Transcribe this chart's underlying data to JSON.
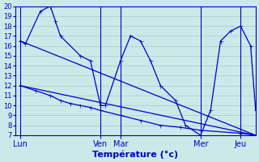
{
  "title": "Température (°c)",
  "background_color": "#cde8e8",
  "grid_color": "#a8c8c8",
  "line_color": "#0000cc",
  "xlim": [
    0,
    96
  ],
  "ylim": [
    7,
    20
  ],
  "yticks": [
    7,
    8,
    9,
    10,
    11,
    12,
    13,
    14,
    15,
    16,
    17,
    18,
    19,
    20
  ],
  "xtick_positions": [
    2,
    34,
    42,
    74,
    90
  ],
  "xtick_labels": [
    "Lun",
    "Ven",
    "Mar",
    "Mer",
    "Jeu"
  ],
  "upper_x": [
    2,
    4,
    10,
    14,
    16,
    18,
    26,
    30,
    34,
    36,
    42,
    46,
    50,
    54,
    58,
    64,
    68,
    74,
    78,
    82,
    86,
    90,
    94,
    96
  ],
  "upper_y": [
    16.5,
    16.2,
    19.5,
    20.0,
    18.5,
    17.0,
    15.0,
    14.5,
    10.0,
    10.0,
    14.5,
    17.0,
    16.5,
    14.5,
    12.0,
    10.5,
    8.0,
    7.0,
    9.5,
    16.5,
    17.5,
    18.0,
    16.0,
    9.5
  ],
  "lower_x": [
    2,
    8,
    14,
    18,
    22,
    26,
    30,
    34,
    42,
    50,
    58,
    66,
    74,
    90,
    96
  ],
  "lower_y": [
    12.0,
    11.5,
    11.0,
    10.5,
    10.2,
    10.0,
    9.8,
    9.5,
    9.0,
    8.5,
    8.0,
    7.8,
    7.5,
    7.2,
    7.0
  ],
  "trend1_x": [
    2,
    96
  ],
  "trend1_y": [
    16.5,
    7.0
  ],
  "trend2_x": [
    2,
    96
  ],
  "trend2_y": [
    12.0,
    7.0
  ],
  "vlines": [
    2,
    34,
    42,
    74,
    90
  ]
}
